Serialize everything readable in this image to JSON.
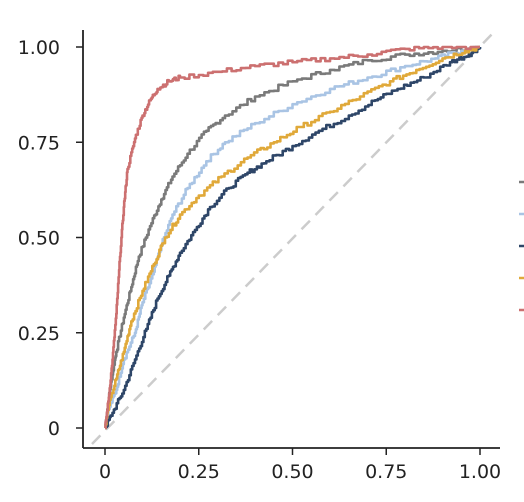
{
  "chart_data": {
    "type": "line",
    "xlim": [
      0,
      1
    ],
    "ylim": [
      0,
      1
    ],
    "x_ticks": [
      "0",
      "0.25",
      "0.50",
      "0.75",
      "1.00"
    ],
    "y_ticks": [
      "0",
      "0.25",
      "0.50",
      "0.75",
      "1.00"
    ],
    "grid": false,
    "legend_position": "right (cropped; labels not visible)",
    "diagonal_reference": true,
    "series": [
      {
        "color": "#7a7a7a",
        "points": [
          [
            0,
            0
          ],
          [
            0.01,
            0.08
          ],
          [
            0.02,
            0.14
          ],
          [
            0.03,
            0.2
          ],
          [
            0.05,
            0.29
          ],
          [
            0.07,
            0.37
          ],
          [
            0.09,
            0.45
          ],
          [
            0.12,
            0.53
          ],
          [
            0.15,
            0.6
          ],
          [
            0.18,
            0.66
          ],
          [
            0.22,
            0.72
          ],
          [
            0.27,
            0.78
          ],
          [
            0.32,
            0.82
          ],
          [
            0.4,
            0.87
          ],
          [
            0.5,
            0.91
          ],
          [
            0.6,
            0.94
          ],
          [
            0.7,
            0.965
          ],
          [
            0.8,
            0.98
          ],
          [
            0.9,
            0.99
          ],
          [
            1,
            1
          ]
        ]
      },
      {
        "color": "#a9c4e4",
        "points": [
          [
            0,
            0
          ],
          [
            0.01,
            0.05
          ],
          [
            0.03,
            0.1
          ],
          [
            0.05,
            0.18
          ],
          [
            0.08,
            0.25
          ],
          [
            0.1,
            0.33
          ],
          [
            0.13,
            0.41
          ],
          [
            0.15,
            0.48
          ],
          [
            0.18,
            0.56
          ],
          [
            0.22,
            0.63
          ],
          [
            0.27,
            0.7
          ],
          [
            0.32,
            0.75
          ],
          [
            0.4,
            0.8
          ],
          [
            0.5,
            0.85
          ],
          [
            0.6,
            0.89
          ],
          [
            0.7,
            0.92
          ],
          [
            0.8,
            0.95
          ],
          [
            0.88,
            0.97
          ],
          [
            0.95,
            0.99
          ],
          [
            1,
            1
          ]
        ]
      },
      {
        "color": "#2e4668",
        "points": [
          [
            0,
            0
          ],
          [
            0.02,
            0.04
          ],
          [
            0.05,
            0.1
          ],
          [
            0.08,
            0.18
          ],
          [
            0.11,
            0.26
          ],
          [
            0.14,
            0.34
          ],
          [
            0.17,
            0.4
          ],
          [
            0.2,
            0.46
          ],
          [
            0.24,
            0.52
          ],
          [
            0.28,
            0.58
          ],
          [
            0.33,
            0.63
          ],
          [
            0.38,
            0.67
          ],
          [
            0.43,
            0.7
          ],
          [
            0.5,
            0.74
          ],
          [
            0.57,
            0.78
          ],
          [
            0.65,
            0.82
          ],
          [
            0.72,
            0.86
          ],
          [
            0.78,
            0.89
          ],
          [
            0.85,
            0.92
          ],
          [
            0.92,
            0.96
          ],
          [
            0.97,
            0.98
          ],
          [
            1,
            1
          ]
        ]
      },
      {
        "color": "#e0a93a",
        "points": [
          [
            0,
            0
          ],
          [
            0.01,
            0.06
          ],
          [
            0.03,
            0.13
          ],
          [
            0.05,
            0.2
          ],
          [
            0.07,
            0.28
          ],
          [
            0.1,
            0.36
          ],
          [
            0.13,
            0.43
          ],
          [
            0.16,
            0.5
          ],
          [
            0.2,
            0.56
          ],
          [
            0.25,
            0.61
          ],
          [
            0.31,
            0.66
          ],
          [
            0.38,
            0.71
          ],
          [
            0.45,
            0.75
          ],
          [
            0.52,
            0.79
          ],
          [
            0.6,
            0.83
          ],
          [
            0.68,
            0.87
          ],
          [
            0.76,
            0.91
          ],
          [
            0.83,
            0.94
          ],
          [
            0.9,
            0.97
          ],
          [
            0.96,
            0.99
          ],
          [
            1,
            1
          ]
        ]
      },
      {
        "color": "#cc7070",
        "points": [
          [
            0,
            0
          ],
          [
            0.01,
            0.08
          ],
          [
            0.02,
            0.18
          ],
          [
            0.03,
            0.3
          ],
          [
            0.04,
            0.45
          ],
          [
            0.05,
            0.58
          ],
          [
            0.06,
            0.68
          ],
          [
            0.08,
            0.76
          ],
          [
            0.1,
            0.82
          ],
          [
            0.12,
            0.86
          ],
          [
            0.14,
            0.89
          ],
          [
            0.17,
            0.91
          ],
          [
            0.2,
            0.92
          ],
          [
            0.3,
            0.935
          ],
          [
            0.4,
            0.95
          ],
          [
            0.5,
            0.96
          ],
          [
            0.6,
            0.97
          ],
          [
            0.7,
            0.98
          ],
          [
            0.8,
            0.995
          ],
          [
            0.9,
            1
          ],
          [
            1,
            1
          ]
        ]
      }
    ]
  }
}
